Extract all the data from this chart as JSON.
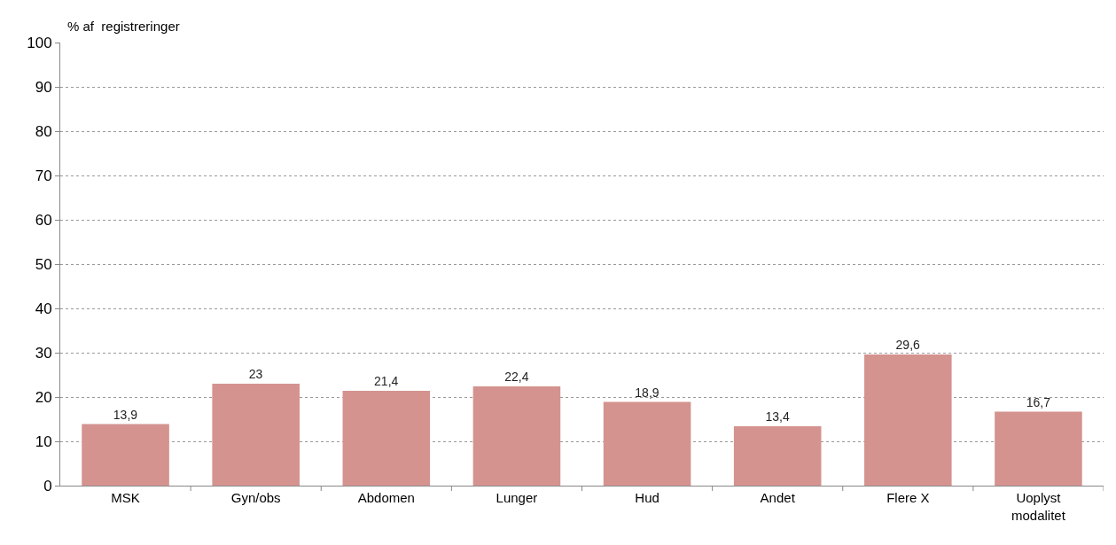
{
  "chart_data": {
    "type": "bar",
    "ylabel": "% af  registreringer",
    "categories": [
      "MSK",
      "Gyn/obs",
      "Abdomen",
      "Lunger",
      "Hud",
      "Andet",
      "Flere X",
      "Uoplyst\nmodalitet"
    ],
    "values": [
      13.9,
      23,
      21.4,
      22.4,
      18.9,
      13.4,
      29.6,
      16.7
    ],
    "value_labels": [
      "13,9",
      "23",
      "21,4",
      "22,4",
      "18,9",
      "13,4",
      "29,6",
      "16,7"
    ],
    "color": "#d4938f",
    "ylim": [
      0,
      100
    ],
    "yticks": [
      0,
      10,
      20,
      30,
      40,
      50,
      60,
      70,
      80,
      90,
      100
    ],
    "grid": "y"
  }
}
